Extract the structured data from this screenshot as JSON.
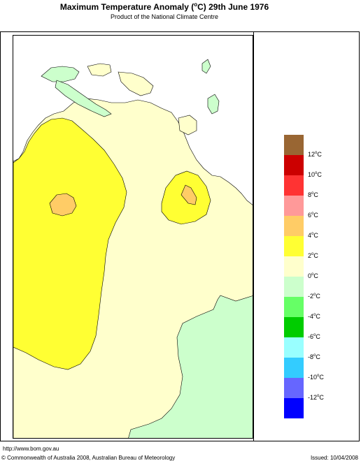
{
  "header": {
    "title_prefix": "Maximum Temperature Anomaly (",
    "title_deg": "o",
    "title_suffix": "C)  29th June 1976",
    "subtitle": "Product of the National Climate Centre"
  },
  "colors": {
    "ocean": "#ffffff",
    "zero_to_two": "#ffffcc",
    "two_to_four": "#ffff33",
    "four_to_six": "#ffcc66",
    "minus_two_to_zero": "#ccffcc"
  },
  "legend": {
    "swatches": [
      {
        "color": "#996633"
      },
      {
        "color": "#cc0000"
      },
      {
        "color": "#ff3333"
      },
      {
        "color": "#ff9999"
      },
      {
        "color": "#ffcc66"
      },
      {
        "color": "#ffff33"
      },
      {
        "color": "#ffffcc"
      },
      {
        "color": "#ccffcc"
      },
      {
        "color": "#66ff66"
      },
      {
        "color": "#00cc00"
      },
      {
        "color": "#99ffff"
      },
      {
        "color": "#33ccff"
      },
      {
        "color": "#6666ff"
      },
      {
        "color": "#0000ff"
      }
    ],
    "labels": [
      {
        "num": "12",
        "deg": "o",
        "unit": "C"
      },
      {
        "num": "10",
        "deg": "o",
        "unit": "C"
      },
      {
        "num": "8",
        "deg": "o",
        "unit": "C"
      },
      {
        "num": "6",
        "deg": "o",
        "unit": "C"
      },
      {
        "num": "4",
        "deg": "o",
        "unit": "C"
      },
      {
        "num": "2",
        "deg": "o",
        "unit": "C"
      },
      {
        "num": "0",
        "deg": "o",
        "unit": "C"
      },
      {
        "num": "-2",
        "deg": "o",
        "unit": "C"
      },
      {
        "num": "-4",
        "deg": "o",
        "unit": "C"
      },
      {
        "num": "-6",
        "deg": "o",
        "unit": "C"
      },
      {
        "num": "-8",
        "deg": "o",
        "unit": "C"
      },
      {
        "num": "-10",
        "deg": "o",
        "unit": "C"
      },
      {
        "num": "-12",
        "deg": "o",
        "unit": "C"
      }
    ]
  },
  "footer": {
    "url": "http://www.bom.gov.au",
    "copyright": "© Commonwealth of Australia 2008, Australian Bureau of Meteorology",
    "issued": "Issued: 10/04/2008"
  }
}
